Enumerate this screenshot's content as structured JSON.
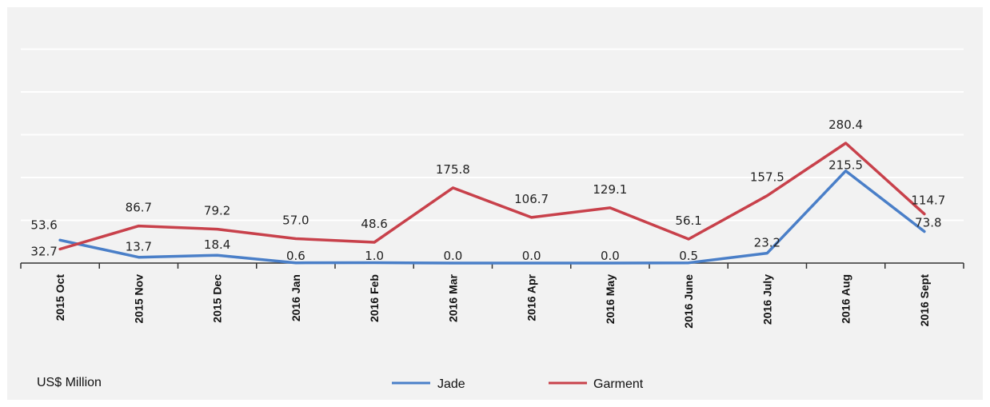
{
  "chart_data": {
    "type": "line",
    "categories": [
      "2015 Oct",
      "2015 Nov",
      "2015 Dec",
      "2016 Jan",
      "2016 Feb",
      "2016 Mar",
      "2016 Apr",
      "2016 May",
      "2016 June",
      "2016 July",
      "2016 Aug",
      "2016 Sept"
    ],
    "series": [
      {
        "name": "Jade",
        "color": "#4a7fc8",
        "values": [
          53.6,
          13.7,
          18.4,
          0.6,
          1.0,
          0.0,
          0.0,
          0.0,
          0.5,
          23.2,
          215.5,
          73.8
        ],
        "labels": [
          "53.6",
          "13.7",
          "18.4",
          "0.6",
          "1.0",
          "0.0",
          "0.0",
          "0.0",
          "0.5",
          "23.2",
          "215.5",
          "73.8"
        ]
      },
      {
        "name": "Garment",
        "color": "#c8414b",
        "values": [
          32.7,
          86.7,
          79.2,
          57.0,
          48.6,
          175.8,
          106.7,
          129.1,
          56.1,
          157.5,
          280.4,
          114.7
        ],
        "labels": [
          "32.7",
          "86.7",
          "79.2",
          "57.0",
          "48.6",
          "175.8",
          "106.7",
          "129.1",
          "56.1",
          "157.5",
          "280.4",
          "114.7"
        ]
      }
    ],
    "unit_label": "US$ Million",
    "ylim": [
      0,
      600
    ],
    "grid": true,
    "legend_position": "bottom-center"
  }
}
